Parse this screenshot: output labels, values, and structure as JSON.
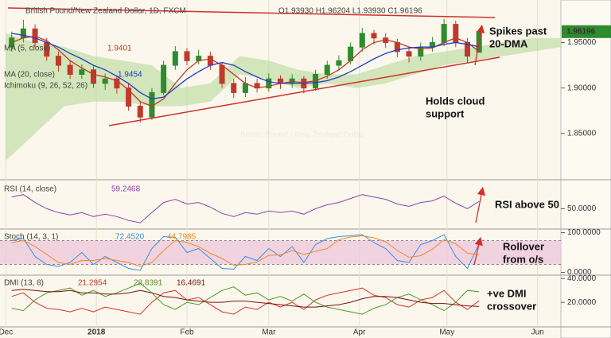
{
  "chart_data": [
    {
      "type": "candlestick",
      "title": "British Pound/New Zealand Dollar, 1D, FXCM",
      "ohlc_label": "O1.93930 H1.96204 L1.93930 C1.96196",
      "watermark": "British Pound / New Zealand Dollar",
      "x": [
        2,
        6,
        10,
        14,
        18,
        22,
        26,
        30,
        34,
        38,
        42,
        46,
        50,
        54,
        58,
        62,
        66,
        70,
        74,
        78,
        82,
        86,
        90,
        94,
        98,
        102,
        106,
        110,
        114,
        118,
        122,
        126,
        130,
        134,
        138,
        142,
        146,
        150,
        154,
        158,
        162
      ],
      "open": [
        1.945,
        1.955,
        1.965,
        1.95,
        1.935,
        1.925,
        1.915,
        1.92,
        1.905,
        1.91,
        1.9,
        1.88,
        1.868,
        1.895,
        1.925,
        1.94,
        1.93,
        1.935,
        1.925,
        1.905,
        1.895,
        1.905,
        1.9,
        1.91,
        1.905,
        1.91,
        1.9,
        1.915,
        1.925,
        1.93,
        1.945,
        1.96,
        1.955,
        1.95,
        1.94,
        1.935,
        1.945,
        1.95,
        1.97,
        1.95,
        1.9393
      ],
      "high": [
        1.962,
        1.975,
        1.97,
        1.955,
        1.94,
        1.93,
        1.926,
        1.924,
        1.916,
        1.914,
        1.905,
        1.885,
        1.9,
        1.93,
        1.946,
        1.944,
        1.942,
        1.94,
        1.928,
        1.91,
        1.912,
        1.91,
        1.916,
        1.914,
        1.915,
        1.913,
        1.92,
        1.93,
        1.936,
        1.95,
        1.966,
        1.964,
        1.96,
        1.954,
        1.945,
        1.95,
        1.956,
        1.976,
        1.974,
        1.955,
        1.96204
      ],
      "low": [
        1.94,
        1.95,
        1.945,
        1.93,
        1.918,
        1.91,
        1.91,
        1.9,
        1.898,
        1.894,
        1.875,
        1.862,
        1.865,
        1.892,
        1.92,
        1.925,
        1.926,
        1.92,
        1.9,
        1.889,
        1.89,
        1.895,
        1.896,
        1.899,
        1.9,
        1.894,
        1.897,
        1.91,
        1.92,
        1.926,
        1.94,
        1.948,
        1.944,
        1.934,
        1.928,
        1.93,
        1.94,
        1.946,
        1.945,
        1.928,
        1.9393
      ],
      "close": [
        1.955,
        1.965,
        1.95,
        1.935,
        1.925,
        1.915,
        1.92,
        1.905,
        1.91,
        1.9,
        1.88,
        1.868,
        1.895,
        1.925,
        1.94,
        1.93,
        1.935,
        1.925,
        1.905,
        1.895,
        1.905,
        1.9,
        1.91,
        1.905,
        1.91,
        1.9,
        1.915,
        1.925,
        1.93,
        1.945,
        1.96,
        1.955,
        1.95,
        1.94,
        1.935,
        1.945,
        1.95,
        1.97,
        1.95,
        1.935,
        1.96196
      ],
      "up_color": "#2e8b2e",
      "down_color": "#c0392b",
      "series": [
        {
          "name": "MA (5, close)",
          "color": "#c0392b",
          "values": [
            1.95,
            1.955,
            1.957,
            1.952,
            1.942,
            1.93,
            1.922,
            1.915,
            1.912,
            1.908,
            1.898,
            1.885,
            1.88,
            1.888,
            1.905,
            1.92,
            1.93,
            1.932,
            1.925,
            1.915,
            1.905,
            1.9,
            1.902,
            1.905,
            1.907,
            1.906,
            1.908,
            1.913,
            1.92,
            1.93,
            1.942,
            1.95,
            1.953,
            1.95,
            1.945,
            1.943,
            1.944,
            1.95,
            1.955,
            1.95,
            1.9401
          ]
        },
        {
          "name": "MA (20, close)",
          "color": "#1f3fbf",
          "values": [
            1.96,
            1.958,
            1.955,
            1.95,
            1.945,
            1.938,
            1.932,
            1.925,
            1.92,
            1.913,
            1.905,
            1.895,
            1.888,
            1.89,
            1.9,
            1.91,
            1.918,
            1.925,
            1.928,
            1.925,
            1.918,
            1.912,
            1.907,
            1.905,
            1.905,
            1.905,
            1.906,
            1.908,
            1.912,
            1.918,
            1.925,
            1.932,
            1.938,
            1.942,
            1.944,
            1.945,
            1.945,
            1.948,
            1.95,
            1.948,
            1.9454
          ]
        }
      ],
      "cloud": {
        "name": "Ichimoku (9, 26, 52, 26)",
        "color": "#b9d99a",
        "x": [
          0,
          10,
          20,
          30,
          40,
          50,
          60,
          70,
          80,
          90,
          100,
          110,
          120,
          130,
          140,
          150,
          160,
          170,
          180,
          190
        ],
        "upper": [
          1.96,
          1.95,
          1.945,
          1.935,
          1.93,
          1.925,
          1.9,
          1.905,
          1.935,
          1.93,
          1.92,
          1.915,
          1.915,
          1.925,
          1.935,
          1.94,
          1.945,
          1.95,
          1.955,
          1.955
        ],
        "lower": [
          1.82,
          1.85,
          1.88,
          1.885,
          1.885,
          1.88,
          1.88,
          1.885,
          1.915,
          1.91,
          1.9,
          1.905,
          1.9,
          1.905,
          1.915,
          1.925,
          1.93,
          1.935,
          1.94,
          1.945
        ]
      },
      "xlim": [
        -2,
        190
      ],
      "ylim": [
        1.8,
        1.995
      ],
      "yticks": [
        {
          "value": 1.85,
          "label": "1.85000"
        },
        {
          "value": 1.9,
          "label": "1.90000"
        },
        {
          "value": 1.95,
          "label": "1.95000"
        }
      ],
      "annotations": [
        [
          "Spikes past",
          "20-DMA"
        ],
        [
          "Holds cloud",
          "support"
        ]
      ]
    },
    {
      "type": "line",
      "title": "RSI (14, close)",
      "x": [
        2,
        6,
        10,
        14,
        18,
        22,
        26,
        30,
        34,
        38,
        42,
        46,
        50,
        54,
        58,
        62,
        66,
        70,
        74,
        78,
        82,
        86,
        90,
        94,
        98,
        102,
        106,
        110,
        114,
        118,
        122,
        126,
        130,
        134,
        138,
        142,
        146,
        150,
        154,
        158,
        162
      ],
      "series": [
        {
          "color": "#8e44ad",
          "values": [
            65,
            68,
            58,
            50,
            45,
            42,
            45,
            40,
            43,
            40,
            35,
            32,
            45,
            58,
            62,
            56,
            58,
            52,
            44,
            40,
            45,
            43,
            47,
            45,
            47,
            43,
            50,
            55,
            58,
            63,
            68,
            65,
            62,
            56,
            53,
            58,
            60,
            66,
            57,
            50,
            59.2468
          ]
        }
      ],
      "xlim": [
        -2,
        190
      ],
      "ylim": [
        25,
        85
      ],
      "yticks": [
        {
          "value": 50,
          "label": "50.0000"
        }
      ],
      "annotations": [
        [
          "RSI above 50"
        ]
      ]
    },
    {
      "type": "line",
      "title": "Stoch (14, 3, 1)",
      "x": [
        2,
        6,
        10,
        14,
        18,
        22,
        26,
        30,
        34,
        38,
        42,
        46,
        50,
        54,
        58,
        62,
        66,
        70,
        74,
        78,
        82,
        86,
        90,
        94,
        98,
        102,
        106,
        110,
        114,
        118,
        122,
        126,
        130,
        134,
        138,
        142,
        146,
        150,
        154,
        158,
        162
      ],
      "series": [
        {
          "color": "#3b8fd9",
          "values": [
            80,
            85,
            40,
            20,
            15,
            25,
            50,
            20,
            40,
            25,
            10,
            5,
            60,
            90,
            88,
            50,
            60,
            35,
            10,
            8,
            40,
            30,
            60,
            40,
            65,
            25,
            70,
            85,
            90,
            92,
            95,
            75,
            60,
            30,
            25,
            70,
            80,
            95,
            40,
            10,
            72.452
          ],
          "value_labels": [
            null,
            null,
            null,
            null,
            null,
            null,
            null,
            null,
            null,
            null,
            null,
            null,
            null,
            null,
            null,
            null,
            null,
            null,
            null,
            null,
            null,
            null,
            null,
            null,
            null,
            null,
            null,
            null,
            null,
            null,
            null,
            null,
            null,
            null,
            null,
            null,
            null,
            null,
            null,
            null,
            "72.4520"
          ]
        },
        {
          "color": "#f08a24",
          "values": [
            75,
            80,
            65,
            45,
            25,
            20,
            30,
            30,
            35,
            30,
            25,
            15,
            25,
            55,
            80,
            75,
            65,
            48,
            35,
            18,
            20,
            26,
            43,
            44,
            55,
            45,
            53,
            60,
            82,
            89,
            92,
            87,
            77,
            55,
            38,
            42,
            58,
            82,
            72,
            48,
            44.7985
          ]
        }
      ],
      "bands": [
        20,
        80
      ],
      "band_color": "#ecc3dc",
      "xlim": [
        -2,
        190
      ],
      "ylim": [
        -5,
        105
      ],
      "yticks": [
        {
          "value": 0,
          "label": "0.0000"
        },
        {
          "value": 100,
          "label": "100.0000"
        }
      ],
      "annotations": [
        [
          "Rollover",
          "from o/s"
        ]
      ]
    },
    {
      "type": "line",
      "title": "DMI (13, 8)",
      "x": [
        2,
        6,
        10,
        14,
        18,
        22,
        26,
        30,
        34,
        38,
        42,
        46,
        50,
        54,
        58,
        62,
        66,
        70,
        74,
        78,
        82,
        86,
        90,
        94,
        98,
        102,
        106,
        110,
        114,
        118,
        122,
        126,
        130,
        134,
        138,
        142,
        146,
        150,
        154,
        158,
        162
      ],
      "series": [
        {
          "color": "#d9342b",
          "values": [
            25,
            28,
            20,
            15,
            14,
            12,
            15,
            12,
            16,
            14,
            12,
            10,
            20,
            28,
            30,
            22,
            24,
            18,
            12,
            10,
            16,
            14,
            20,
            16,
            20,
            14,
            22,
            26,
            28,
            30,
            32,
            26,
            24,
            18,
            16,
            22,
            24,
            30,
            20,
            14,
            21.2954
          ]
        },
        {
          "color": "#4f9a2a",
          "values": [
            15,
            13,
            22,
            28,
            30,
            32,
            26,
            30,
            25,
            28,
            32,
            36,
            28,
            18,
            14,
            20,
            18,
            24,
            30,
            33,
            26,
            28,
            22,
            25,
            21,
            27,
            20,
            16,
            14,
            12,
            10,
            15,
            18,
            24,
            27,
            22,
            18,
            13,
            20,
            30,
            28.8391
          ]
        },
        {
          "color": "#7b1010",
          "values": [
            30,
            31,
            30,
            29,
            29,
            30,
            28,
            28,
            27,
            27,
            28,
            30,
            28,
            25,
            24,
            22,
            21,
            20,
            20,
            21,
            21,
            20,
            19,
            18,
            17,
            16,
            16,
            17,
            18,
            20,
            23,
            25,
            25,
            24,
            22,
            20,
            19,
            19,
            18,
            17,
            16.4691
          ]
        }
      ],
      "xlim": [
        -2,
        190
      ],
      "ylim": [
        0,
        41.5
      ],
      "yticks": [
        {
          "value": 20,
          "label": "20.0000"
        },
        {
          "value": 40,
          "label": "40.0000"
        }
      ],
      "xticks": [
        {
          "value": 0,
          "label": "Dec"
        },
        {
          "value": 31,
          "label": "2018"
        },
        {
          "value": 62,
          "label": "Feb"
        },
        {
          "value": 90,
          "label": "Mar"
        },
        {
          "value": 121,
          "label": "Apr"
        },
        {
          "value": 151,
          "label": "May"
        },
        {
          "value": 182,
          "label": "Jun"
        }
      ],
      "annotations": [
        [
          "+ve DMI",
          "crossover"
        ]
      ]
    }
  ]
}
